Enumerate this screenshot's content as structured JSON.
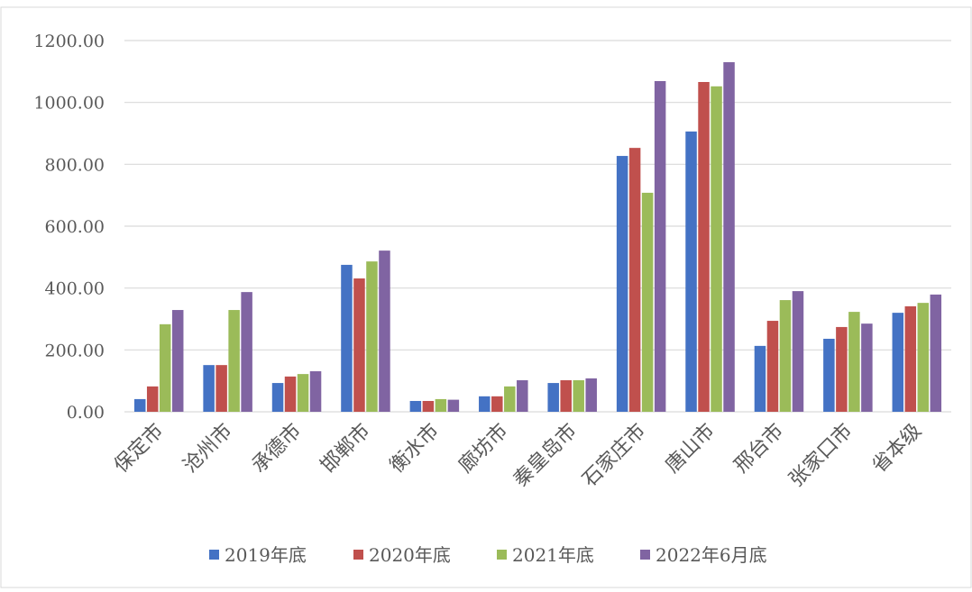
{
  "chart_data": {
    "type": "bar",
    "categories": [
      "保定市",
      "沧州市",
      "承德市",
      "邯郸市",
      "衡水市",
      "廊坊市",
      "秦皇岛市",
      "石家庄市",
      "唐山市",
      "邢台市",
      "张家口市",
      "省本级"
    ],
    "series": [
      {
        "name": "2019年底",
        "color": "#4472c4",
        "values": [
          41,
          151,
          93,
          475,
          35,
          50,
          93,
          827,
          906,
          213,
          236,
          320
        ]
      },
      {
        "name": "2020年底",
        "color": "#c0504d",
        "values": [
          82,
          151,
          114,
          431,
          35,
          50,
          102,
          853,
          1066,
          294,
          274,
          341
        ]
      },
      {
        "name": "2021年底",
        "color": "#9bbb59",
        "values": [
          283,
          329,
          122,
          486,
          41,
          82,
          102,
          708,
          1052,
          361,
          323,
          352
        ]
      },
      {
        "name": "2022年6月底",
        "color": "#8064a2",
        "values": [
          329,
          387,
          131,
          521,
          39,
          102,
          108,
          1069,
          1130,
          390,
          285,
          379
        ]
      }
    ],
    "ylim": [
      0,
      1200
    ],
    "yticks": [
      {
        "value": 0,
        "label": "0.00"
      },
      {
        "value": 200,
        "label": "200.00"
      },
      {
        "value": 400,
        "label": "400.00"
      },
      {
        "value": 600,
        "label": "600.00"
      },
      {
        "value": 800,
        "label": "800.00"
      },
      {
        "value": 1000,
        "label": "1000.00"
      },
      {
        "value": 1200,
        "label": "1200.00"
      }
    ],
    "grid": true,
    "legend": "bottom"
  }
}
